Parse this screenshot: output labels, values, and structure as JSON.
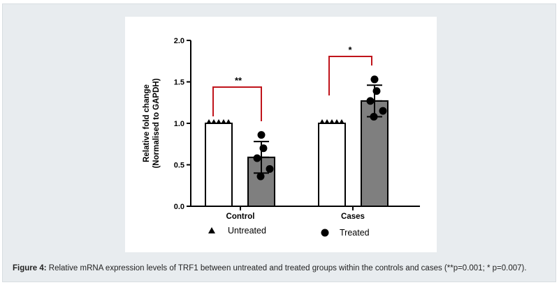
{
  "caption": {
    "label": "Figure 4:",
    "text": "Relative mRNA expression levels of TRF1 between untreated and treated groups within the controls and cases (**p=0.001; * p=0.007)."
  },
  "chart_data": {
    "type": "bar",
    "ylabel_line1": "Relative fold change",
    "ylabel_line2": "(Normalised to GAPDH)",
    "ylim": [
      0,
      2.0
    ],
    "yticks": [
      "0.0",
      "0.5",
      "1.0",
      "1.5",
      "2.0"
    ],
    "ytick_values": [
      0,
      0.5,
      1.0,
      1.5,
      2.0
    ],
    "categories": [
      "Control",
      "Cases"
    ],
    "series": [
      {
        "name": "Untreated",
        "marker": "triangle",
        "fill": "#ffffff",
        "values": [
          1.0,
          1.0
        ],
        "errors": [
          0.0,
          0.0
        ],
        "points": [
          [
            1.0,
            1.0,
            1.0,
            1.0,
            1.0
          ],
          [
            1.0,
            1.0,
            1.0,
            1.0,
            1.0
          ]
        ]
      },
      {
        "name": "Treated",
        "marker": "circle",
        "fill": "#7f7f7f",
        "values": [
          0.59,
          1.27
        ],
        "errors": [
          0.19,
          0.19
        ],
        "points": [
          [
            0.86,
            0.7,
            0.58,
            0.45,
            0.36
          ],
          [
            1.53,
            1.39,
            1.27,
            1.15,
            1.08
          ]
        ]
      }
    ],
    "significance": [
      {
        "group": "Control",
        "label": "**"
      },
      {
        "group": "Cases",
        "label": "*"
      }
    ],
    "legend": [
      {
        "marker": "triangle",
        "label": "Untreated"
      },
      {
        "marker": "circle",
        "label": "Treated"
      }
    ],
    "colors": {
      "bracket": "#c0141b",
      "axis": "#000000"
    }
  }
}
